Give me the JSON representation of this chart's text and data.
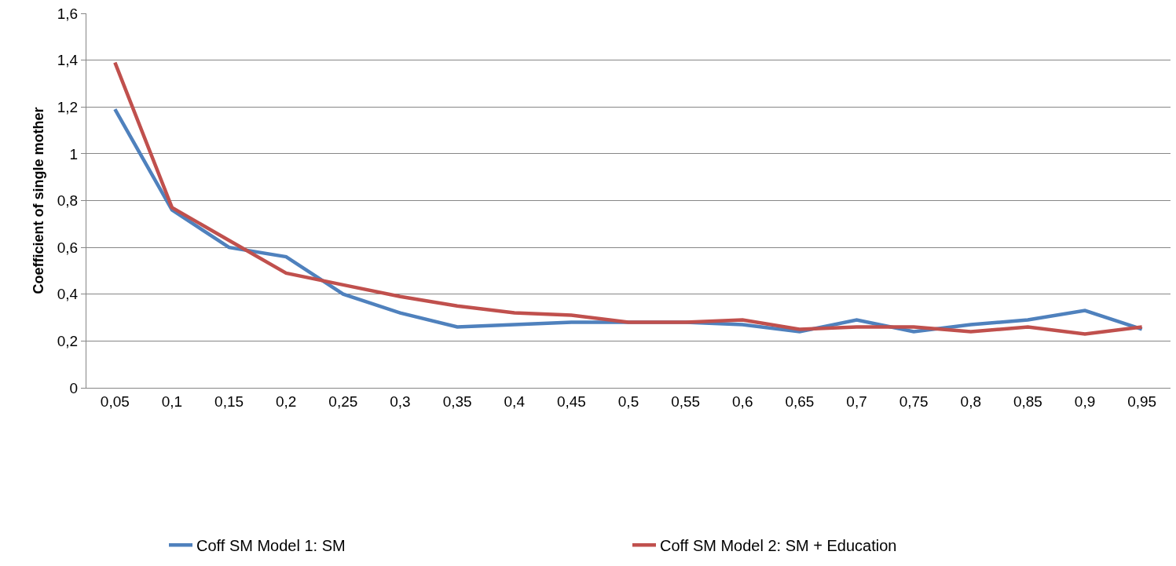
{
  "chart_data": {
    "type": "line",
    "ylabel": "Coefficient of single mother",
    "categories": [
      "0,05",
      "0,1",
      "0,15",
      "0,2",
      "0,25",
      "0,3",
      "0,35",
      "0,4",
      "0,45",
      "0,5",
      "0,55",
      "0,6",
      "0,65",
      "0,7",
      "0,75",
      "0,8",
      "0,85",
      "0,9",
      "0,95"
    ],
    "series": [
      {
        "name": "Coff SM Model 1: SM",
        "color": "#4f81bd",
        "values": [
          1.19,
          0.76,
          0.6,
          0.56,
          0.4,
          0.32,
          0.26,
          0.27,
          0.28,
          0.28,
          0.28,
          0.27,
          0.24,
          0.29,
          0.24,
          0.27,
          0.29,
          0.33,
          0.25
        ]
      },
      {
        "name": "Coff SM Model 2: SM + Education",
        "color": "#c0504d",
        "values": [
          1.39,
          0.77,
          0.63,
          0.49,
          0.44,
          0.39,
          0.35,
          0.32,
          0.31,
          0.28,
          0.28,
          0.29,
          0.25,
          0.26,
          0.26,
          0.24,
          0.26,
          0.23,
          0.26
        ]
      }
    ],
    "ylim": [
      0,
      1.6
    ],
    "yticks": [
      0,
      {
        "value": 0.2,
        "label": "0,2"
      },
      {
        "value": 0.4,
        "label": "0,4"
      },
      {
        "value": 0.6,
        "label": "0,6"
      },
      {
        "value": 0.8,
        "label": "0,8"
      },
      1,
      {
        "value": 1.2,
        "label": "1,2"
      },
      {
        "value": 1.4,
        "label": "1,4"
      },
      {
        "value": 1.6,
        "label": "1,6"
      }
    ],
    "grid": "y",
    "legend": "bottom",
    "marker": "none",
    "line_style": "solid"
  }
}
